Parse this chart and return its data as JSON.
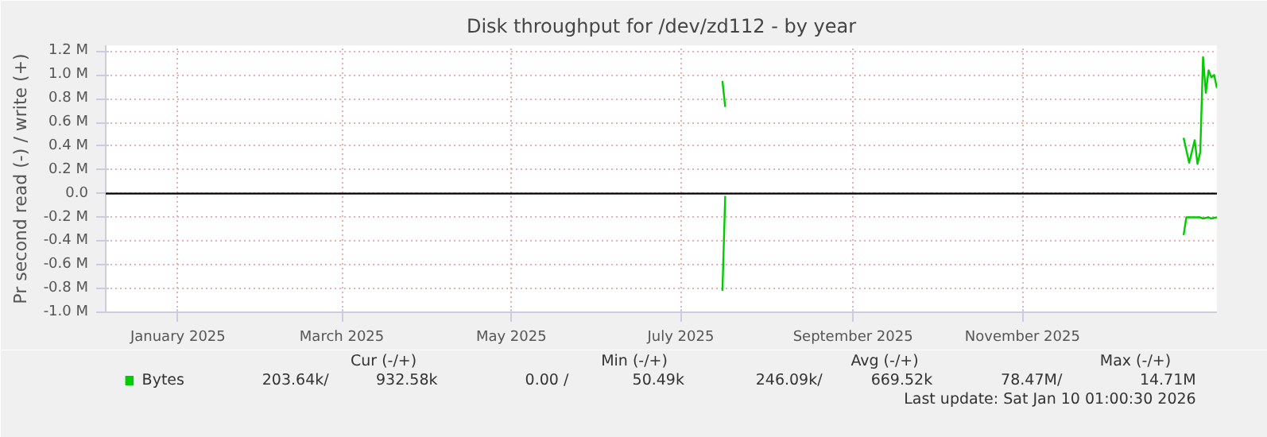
{
  "chart_data": {
    "type": "line",
    "title": "Disk throughput for /dev/zd112 - by year",
    "ylabel": "Pr second read (-) / write (+)",
    "xlim": [
      "2024-12-06",
      "2026-01-10"
    ],
    "xticks": [
      {
        "value": "2025-01-01",
        "label": "January 2025"
      },
      {
        "value": "2025-03-01",
        "label": "March 2025"
      },
      {
        "value": "2025-05-01",
        "label": "May 2025"
      },
      {
        "value": "2025-07-01",
        "label": "July 2025"
      },
      {
        "value": "2025-09-01",
        "label": "September 2025"
      },
      {
        "value": "2025-11-01",
        "label": "November 2025"
      }
    ],
    "ylim": [
      -1000000,
      1250000
    ],
    "yticks": [
      {
        "value": -1000000,
        "label": "-1.0 M"
      },
      {
        "value": -800000,
        "label": "-0.8 M"
      },
      {
        "value": -600000,
        "label": "-0.6 M"
      },
      {
        "value": -400000,
        "label": "-0.4 M"
      },
      {
        "value": -200000,
        "label": "-0.2 M"
      },
      {
        "value": 0,
        "label": "0.0"
      },
      {
        "value": 200000,
        "label": "0.2 M"
      },
      {
        "value": 400000,
        "label": "0.4 M"
      },
      {
        "value": 600000,
        "label": "0.6 M"
      },
      {
        "value": 800000,
        "label": "0.8 M"
      },
      {
        "value": 1000000,
        "label": "1.0 M"
      },
      {
        "value": 1200000,
        "label": "1.2 M"
      }
    ],
    "grid": true,
    "legend": "bottom",
    "ref_lines": [
      {
        "axis": "y",
        "value": 0,
        "label": null,
        "color": "#000000"
      }
    ],
    "series": [
      {
        "name": "Bytes",
        "color": "#00cc00",
        "x": [
          "2025-07-16",
          "2025-07-17",
          "2025-07-18",
          "2025-12-29",
          "2025-12-31",
          "2026-01-02",
          "2026-01-03",
          "2026-01-04",
          "2026-01-05",
          "2026-01-06",
          "2026-01-07",
          "2026-01-08",
          "2026-01-09",
          "2026-01-10"
        ],
        "values": [
          950000,
          730000,
          null,
          470000,
          260000,
          450000,
          250000,
          350000,
          1150000,
          850000,
          1040000,
          980000,
          1000000,
          890000
        ]
      },
      {
        "color": "#00cc00",
        "x": [
          "2025-07-16",
          "2025-07-17",
          "2025-07-18",
          "2025-12-29",
          "2025-12-30",
          "2026-01-04",
          "2026-01-05",
          "2026-01-07",
          "2026-01-08",
          "2026-01-10"
        ],
        "values": [
          -820000,
          -20000,
          null,
          -350000,
          -200000,
          -200000,
          -210000,
          -200000,
          -210000,
          -200000
        ]
      }
    ],
    "annotations": [
      "Cur (-/+)",
      "Min (-/+)",
      "Avg (-/+)",
      "Max (-/+)",
      "203.64k/",
      "932.58k",
      "0.00 /",
      "50.49k",
      "246.09k/",
      "669.52k",
      "78.47M/",
      "14.71M",
      "Last update: Sat Jan 10 01:00:30 2026"
    ]
  }
}
